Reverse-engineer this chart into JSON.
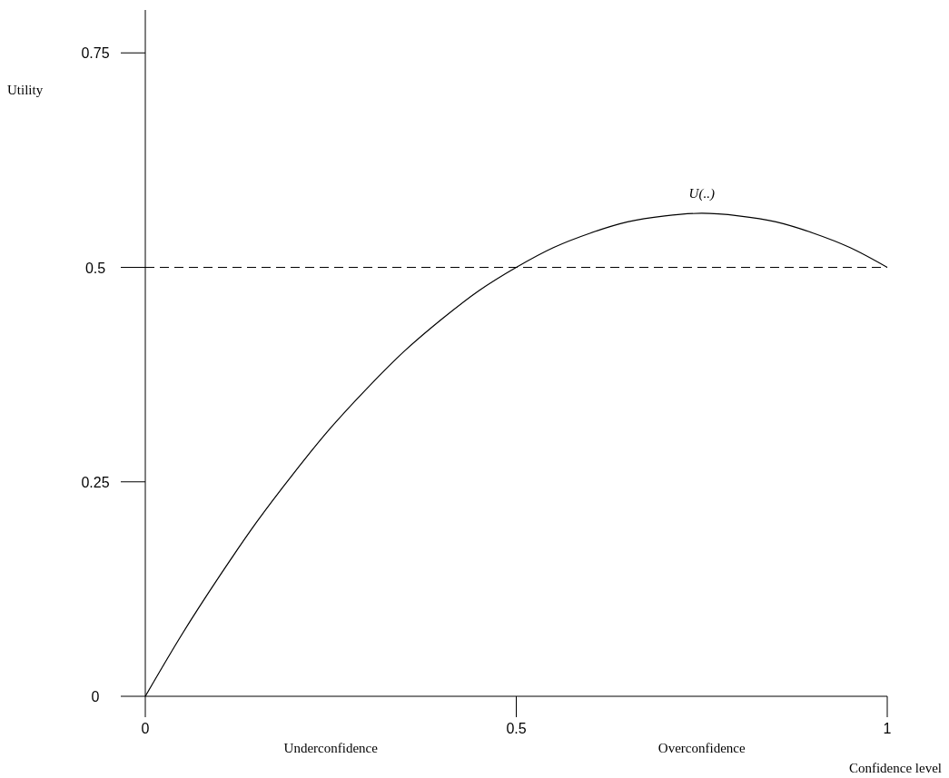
{
  "chart_data": {
    "type": "line",
    "xlabel": "Confidence level",
    "ylabel": "Utility",
    "x": [
      0,
      0.05,
      0.1,
      0.15,
      0.2,
      0.25,
      0.3,
      0.35,
      0.4,
      0.45,
      0.5,
      0.55,
      0.6,
      0.65,
      0.7,
      0.75,
      0.8,
      0.85,
      0.9,
      0.95,
      1
    ],
    "series": [
      {
        "color": "#000000",
        "values": [
          0,
          0.073,
          0.14,
          0.203,
          0.26,
          0.313,
          0.36,
          0.403,
          0.44,
          0.473,
          0.5,
          0.523,
          0.54,
          0.553,
          0.56,
          0.563,
          0.56,
          0.553,
          0.54,
          0.523,
          0.5
        ]
      }
    ],
    "xlim": [
      0,
      1
    ],
    "xticks": [
      0,
      0.5,
      1
    ],
    "ylim": [
      0,
      0.8
    ],
    "yticks": [
      0,
      0.25,
      0.5,
      0.75
    ],
    "ref_lines": [
      {
        "axis": "y",
        "value": 0.5,
        "line_style": "dashed",
        "color": "#000000"
      }
    ],
    "annotations": [
      {
        "text": "U(..)",
        "x": 0.75,
        "y": 0.563
      },
      "Underconfidence",
      "Overconfidence"
    ],
    "grid": false,
    "marker": "none",
    "line_style": "solid"
  }
}
